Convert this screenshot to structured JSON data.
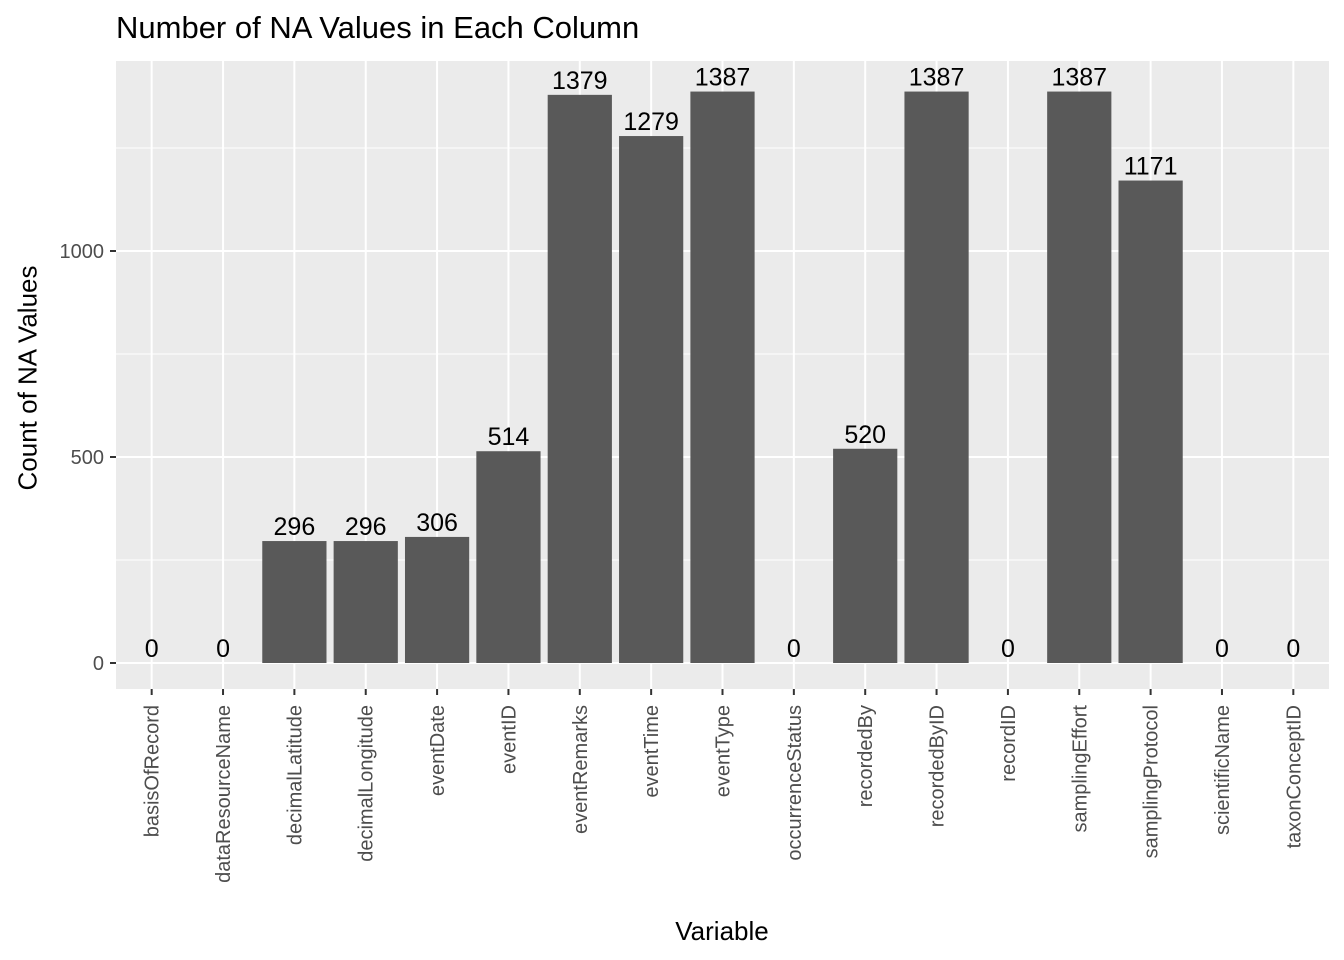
{
  "chart_data": {
    "type": "bar",
    "title": "Number of NA Values in Each Column",
    "xlabel": "Variable",
    "ylabel": "Count of NA Values",
    "categories": [
      "basisOfRecord",
      "dataResourceName",
      "decimalLatitude",
      "decimalLongitude",
      "eventDate",
      "eventID",
      "eventRemarks",
      "eventTime",
      "eventType",
      "occurrenceStatus",
      "recordedBy",
      "recordedByID",
      "recordID",
      "samplingEffort",
      "samplingProtocol",
      "scientificName",
      "taxonConceptID"
    ],
    "values": [
      0,
      0,
      296,
      296,
      306,
      514,
      1379,
      1279,
      1387,
      0,
      520,
      1387,
      0,
      1387,
      1171,
      0,
      0
    ],
    "y_ticks": [
      0,
      500,
      1000
    ],
    "ylim": [
      -70,
      1500
    ],
    "grid": true,
    "legend": "none",
    "colors": {
      "panel": "#EBEBEB",
      "grid": "#FFFFFF",
      "bar": "#595959",
      "axis_text": "#4D4D4D",
      "tick": "#333333"
    }
  }
}
